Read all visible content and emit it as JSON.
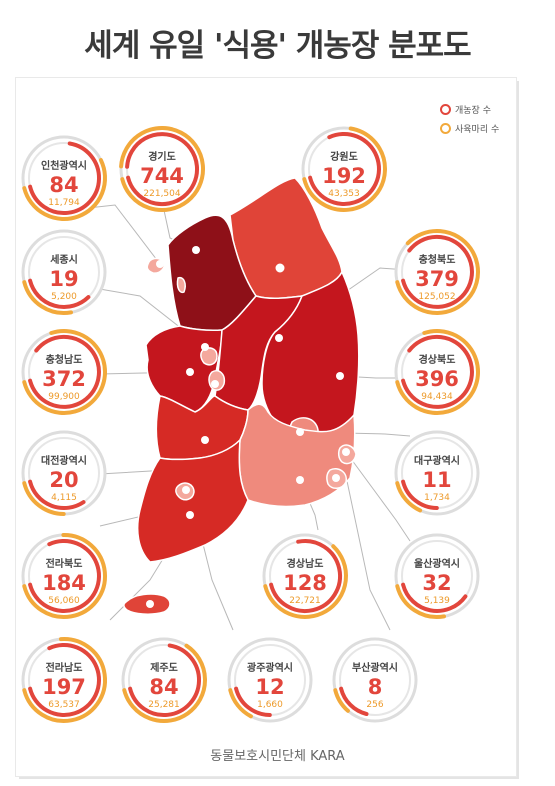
{
  "title": "세계 유일 '식용' 개농장 분포도",
  "footer": "동물보호시민단체 KARA",
  "legend": {
    "farms_label": "개농장 수",
    "dogs_label": "사육마리 수",
    "farms_color": "#e2463c",
    "dogs_color": "#f2a93b"
  },
  "regions": [
    {
      "key": "incheon",
      "name": "인천광역시",
      "farms": "84",
      "dogs": "11,794",
      "farm_ratio": 0.72,
      "dog_ratio": 0.56
    },
    {
      "key": "gyeonggi",
      "name": "경기도",
      "farms": "744",
      "dogs": "221,504",
      "farm_ratio": 1.0,
      "dog_ratio": 1.0
    },
    {
      "key": "gangwon",
      "name": "강원도",
      "farms": "192",
      "dogs": "43,353",
      "farm_ratio": 0.82,
      "dog_ratio": 0.72
    },
    {
      "key": "sejong",
      "name": "세종시",
      "farms": "19",
      "dogs": "5,200",
      "farm_ratio": 0.35,
      "dog_ratio": 0.25
    },
    {
      "key": "chungbuk",
      "name": "충청북도",
      "farms": "379",
      "dogs": "125,052",
      "farm_ratio": 0.9,
      "dog_ratio": 0.88
    },
    {
      "key": "chungnam",
      "name": "충청남도",
      "farms": "372",
      "dogs": "99,900",
      "farm_ratio": 0.9,
      "dog_ratio": 0.8
    },
    {
      "key": "gyeongbuk",
      "name": "경상북도",
      "farms": "396",
      "dogs": "94,434",
      "farm_ratio": 0.9,
      "dog_ratio": 0.8
    },
    {
      "key": "daejeon",
      "name": "대전광역시",
      "farms": "20",
      "dogs": "4,115",
      "farm_ratio": 0.32,
      "dog_ratio": 0.22
    },
    {
      "key": "daegu",
      "name": "대구광역시",
      "farms": "11",
      "dogs": "1,734",
      "farm_ratio": 0.22,
      "dog_ratio": 0.15
    },
    {
      "key": "jeonbuk",
      "name": "전라북도",
      "farms": "184",
      "dogs": "56,060",
      "farm_ratio": 0.82,
      "dog_ratio": 0.75
    },
    {
      "key": "gyeongnam",
      "name": "경상남도",
      "farms": "128",
      "dogs": "22,721",
      "farm_ratio": 0.78,
      "dog_ratio": 0.62
    },
    {
      "key": "ulsan",
      "name": "울산광역시",
      "farms": "32",
      "dogs": "5,139",
      "farm_ratio": 0.38,
      "dog_ratio": 0.25
    },
    {
      "key": "jeonnam",
      "name": "전라남도",
      "farms": "197",
      "dogs": "63,537",
      "farm_ratio": 0.82,
      "dog_ratio": 0.76
    },
    {
      "key": "jeju",
      "name": "제주도",
      "farms": "84",
      "dogs": "25,281",
      "farm_ratio": 0.72,
      "dog_ratio": 0.65
    },
    {
      "key": "gwangju",
      "name": "광주광역시",
      "farms": "12",
      "dogs": "1,660",
      "farm_ratio": 0.22,
      "dog_ratio": 0.14
    },
    {
      "key": "busan",
      "name": "부산광역시",
      "farms": "8",
      "dogs": "256",
      "farm_ratio": 0.18,
      "dog_ratio": 0.1
    }
  ],
  "map_colors": {
    "gyeonggi": "#8e1018",
    "deep": "#c4161e",
    "mid": "#d62a25",
    "medium": "#e04438",
    "light": "#ef8a7d",
    "lighter": "#f4a89d"
  }
}
